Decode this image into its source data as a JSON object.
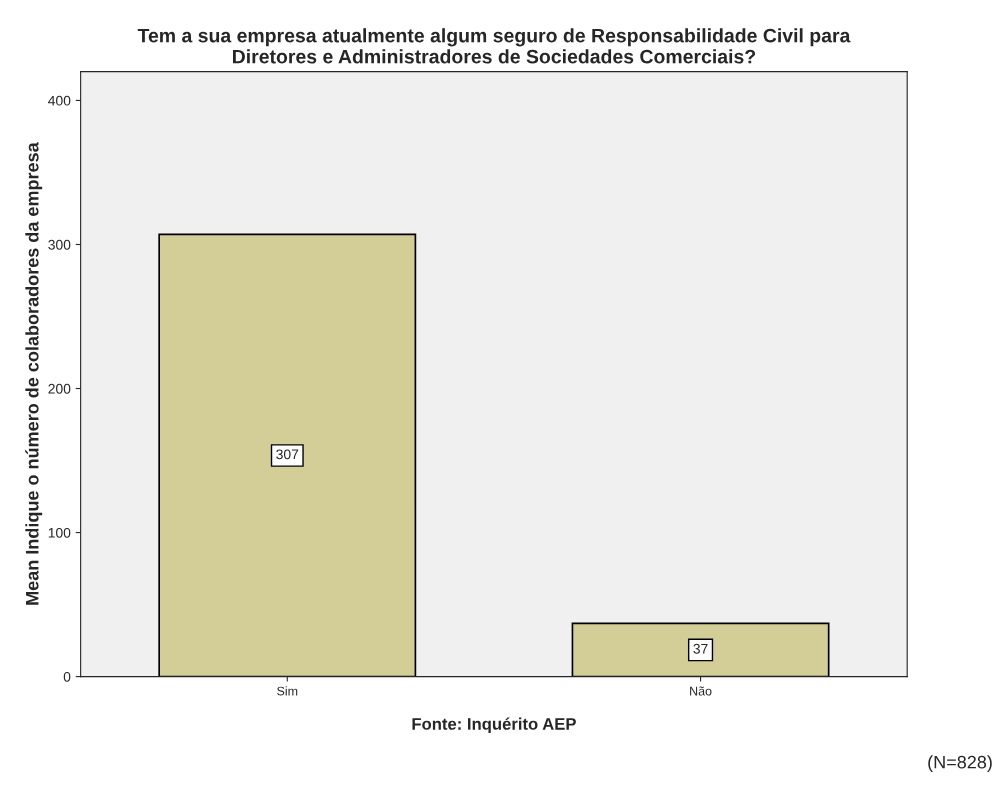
{
  "chart_data": {
    "type": "bar",
    "title": "Tem a sua empresa atualmente algum seguro de Responsabilidade Civil para\nDiretores e Administradores de Sociedades Comerciais?",
    "xlabel": "Fonte: Inquérito AEP",
    "ylabel": "Mean Indique o número de colaboradores da empresa",
    "categories": [
      "Sim",
      "Não"
    ],
    "values": [
      307,
      37
    ],
    "color": "#d3ce97",
    "ylim": [
      0,
      420
    ],
    "yticks": [
      0,
      100,
      200,
      300,
      400
    ],
    "data_labels": true,
    "grid": false,
    "legend": false,
    "annotations": [
      "(N=828)"
    ]
  }
}
